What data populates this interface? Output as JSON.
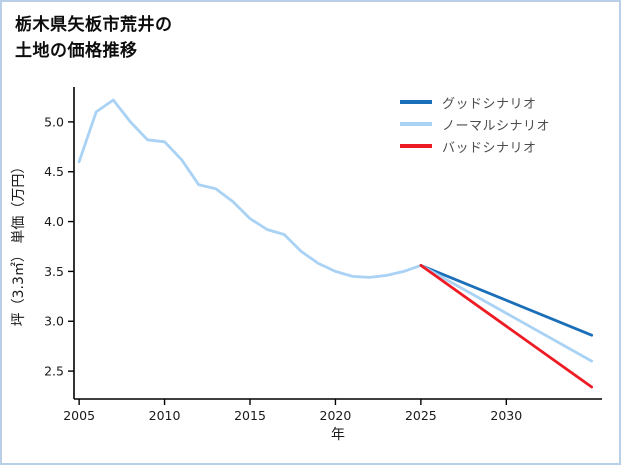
{
  "chart_data": {
    "type": "line",
    "title_lines": [
      "栃木県矢板市荒井の",
      "土地の価格推移"
    ],
    "xlabel": "年",
    "ylabel": "坪（3.3㎡） 単価（万円）",
    "xlim": [
      2004.7,
      2035.6
    ],
    "ylim": [
      2.22,
      5.35
    ],
    "xticks": [
      2005,
      2010,
      2015,
      2020,
      2025,
      2030
    ],
    "yticks": [
      2.5,
      3.0,
      3.5,
      4.0,
      4.5,
      5.0
    ],
    "legend_position": "upper right",
    "grid": false,
    "history": {
      "color": "#a9d2f4",
      "x": [
        2005,
        2006,
        2007,
        2008,
        2009,
        2010,
        2011,
        2012,
        2013,
        2014,
        2015,
        2016,
        2017,
        2018,
        2019,
        2020,
        2021,
        2022,
        2023,
        2024,
        2025
      ],
      "y": [
        4.6,
        5.1,
        5.22,
        5.0,
        4.82,
        4.8,
        4.62,
        4.37,
        4.33,
        4.2,
        4.03,
        3.92,
        3.87,
        3.7,
        3.58,
        3.5,
        3.45,
        3.44,
        3.46,
        3.5,
        3.56
      ]
    },
    "series": [
      {
        "name": "グッドシナリオ",
        "color": "#1b6fb8",
        "x": [
          2025,
          2035
        ],
        "y": [
          3.56,
          2.86
        ]
      },
      {
        "name": "ノーマルシナリオ",
        "color": "#a9d2f4",
        "x": [
          2025,
          2035
        ],
        "y": [
          3.56,
          2.6
        ]
      },
      {
        "name": "バッドシナリオ",
        "color": "#ed1c24",
        "x": [
          2025,
          2035
        ],
        "y": [
          3.56,
          2.34
        ]
      }
    ]
  }
}
